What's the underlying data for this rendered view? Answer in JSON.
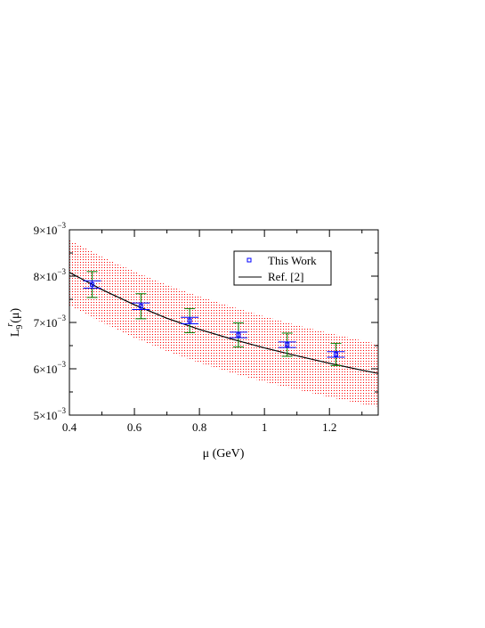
{
  "chart_data": {
    "type": "scatter",
    "xlabel": "μ (GeV)",
    "ylabel": {
      "base": "L",
      "sub": "9",
      "sup": "r",
      "arg": "(μ)"
    },
    "xlim": [
      0.4,
      1.35
    ],
    "ylim": [
      0.005,
      0.009
    ],
    "x_ticks": [
      {
        "value": 0.4,
        "label": "0.4"
      },
      {
        "value": 0.6,
        "label": "0.6"
      },
      {
        "value": 0.8,
        "label": "0.8"
      },
      {
        "value": 1.0,
        "label": "1"
      },
      {
        "value": 1.2,
        "label": "1.2"
      }
    ],
    "y_ticks": [
      {
        "value": 0.005,
        "mantissa": "5×10",
        "exp": "−3"
      },
      {
        "value": 0.006,
        "mantissa": "6×10",
        "exp": "−3"
      },
      {
        "value": 0.007,
        "mantissa": "7×10",
        "exp": "−3"
      },
      {
        "value": 0.008,
        "mantissa": "8×10",
        "exp": "−3"
      },
      {
        "value": 0.009,
        "mantissa": "9×10",
        "exp": "−3"
      }
    ],
    "grid": false,
    "legend_position": "top-right",
    "series": [
      {
        "name": "This Work",
        "kind": "points",
        "color": "#0000ff",
        "x": [
          0.47,
          0.62,
          0.77,
          0.92,
          1.07,
          1.22
        ],
        "y": [
          0.00782,
          0.00735,
          0.00704,
          0.00673,
          0.00652,
          0.00631
        ],
        "err_inner": [
          8e-05,
          7e-05,
          7e-05,
          6e-05,
          6e-05,
          6e-05
        ],
        "err_outer": [
          0.00028,
          0.00027,
          0.00026,
          0.00026,
          0.00025,
          0.00024
        ],
        "inner_color": "#0000ff",
        "outer_color": "#008000"
      },
      {
        "name": "Ref. [2]",
        "kind": "line",
        "color": "#000000",
        "x": [
          0.4,
          0.5,
          0.6,
          0.7,
          0.8,
          0.9,
          1.0,
          1.1,
          1.2,
          1.3,
          1.35
        ],
        "y": [
          0.00808,
          0.00771,
          0.00738,
          0.00709,
          0.00685,
          0.00664,
          0.00645,
          0.00628,
          0.00612,
          0.00597,
          0.0059
        ]
      }
    ],
    "band": {
      "color": "#ff0000",
      "x": [
        0.4,
        0.5,
        0.6,
        0.7,
        0.8,
        0.9,
        1.0,
        1.1,
        1.2,
        1.3,
        1.35
      ],
      "upper": [
        0.00878,
        0.00842,
        0.0081,
        0.00781,
        0.00756,
        0.00734,
        0.00713,
        0.00694,
        0.00677,
        0.00661,
        0.00653
      ],
      "lower": [
        0.00737,
        0.007,
        0.00667,
        0.00638,
        0.00613,
        0.00591,
        0.00572,
        0.00555,
        0.00539,
        0.00524,
        0.00518
      ]
    }
  }
}
